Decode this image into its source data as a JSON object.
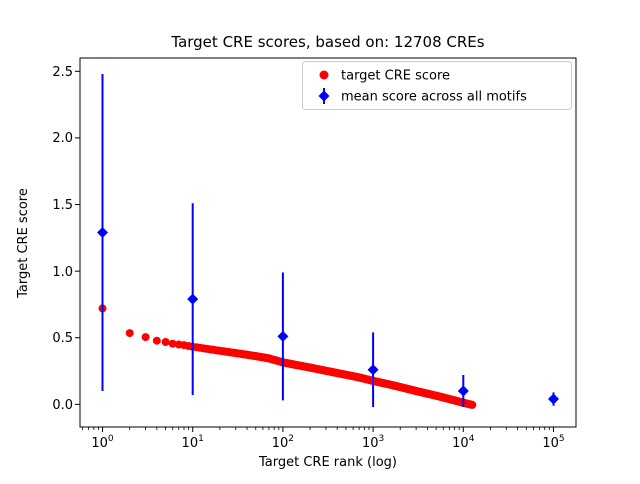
{
  "title": "Target CRE scores, based on: 12708 CREs",
  "axes": {
    "xlabel": "Target CRE rank (log)",
    "ylabel": "Target CRE score",
    "x_ticks": [
      {
        "base": "10",
        "exp": "0"
      },
      {
        "base": "10",
        "exp": "1"
      },
      {
        "base": "10",
        "exp": "2"
      },
      {
        "base": "10",
        "exp": "3"
      },
      {
        "base": "10",
        "exp": "4"
      },
      {
        "base": "10",
        "exp": "5"
      }
    ],
    "y_ticks": [
      "0.0",
      "0.5",
      "1.0",
      "1.5",
      "2.0",
      "2.5"
    ]
  },
  "legend": {
    "items": [
      {
        "label": "target CRE score",
        "marker": "circle",
        "color": "#ff0000"
      },
      {
        "label": "mean score across all motifs",
        "marker": "diamond",
        "color": "#0000ff"
      }
    ]
  },
  "chart_data": {
    "type": "scatter",
    "title": "Target CRE scores, based on: 12708 CREs",
    "xlabel": "Target CRE rank (log)",
    "ylabel": "Target CRE score",
    "x_scale": "log",
    "xlim": [
      0.562,
      177827
    ],
    "ylim": [
      -0.17,
      2.6
    ],
    "n_points": 12708,
    "series": [
      {
        "name": "target CRE score",
        "marker": "circle",
        "color": "#ff0000",
        "points_note": "12708 rank-vs-score points forming a dense decreasing band; control points sampled from the curve",
        "points": [
          [
            1,
            0.72
          ],
          [
            2,
            0.535
          ],
          [
            3,
            0.505
          ],
          [
            4,
            0.478
          ],
          [
            5,
            0.468
          ],
          [
            6,
            0.455
          ],
          [
            8,
            0.445
          ],
          [
            10,
            0.432
          ],
          [
            15,
            0.415
          ],
          [
            20,
            0.402
          ],
          [
            30,
            0.385
          ],
          [
            50,
            0.362
          ],
          [
            70,
            0.345
          ],
          [
            100,
            0.315
          ],
          [
            150,
            0.292
          ],
          [
            200,
            0.276
          ],
          [
            300,
            0.252
          ],
          [
            500,
            0.222
          ],
          [
            700,
            0.202
          ],
          [
            1000,
            0.176
          ],
          [
            1500,
            0.15
          ],
          [
            2000,
            0.13
          ],
          [
            3000,
            0.1
          ],
          [
            5000,
            0.065
          ],
          [
            7000,
            0.04
          ],
          [
            10000,
            0.012
          ],
          [
            12708,
            -0.005
          ]
        ]
      },
      {
        "name": "mean score across all motifs",
        "marker": "diamond",
        "color": "#0000ff",
        "x": [
          1,
          10,
          100,
          1000,
          10000,
          100000
        ],
        "mean": [
          1.29,
          0.79,
          0.51,
          0.26,
          0.1,
          0.04
        ],
        "err": [
          1.19,
          0.72,
          0.48,
          0.28,
          0.12,
          0.05
        ]
      }
    ]
  }
}
